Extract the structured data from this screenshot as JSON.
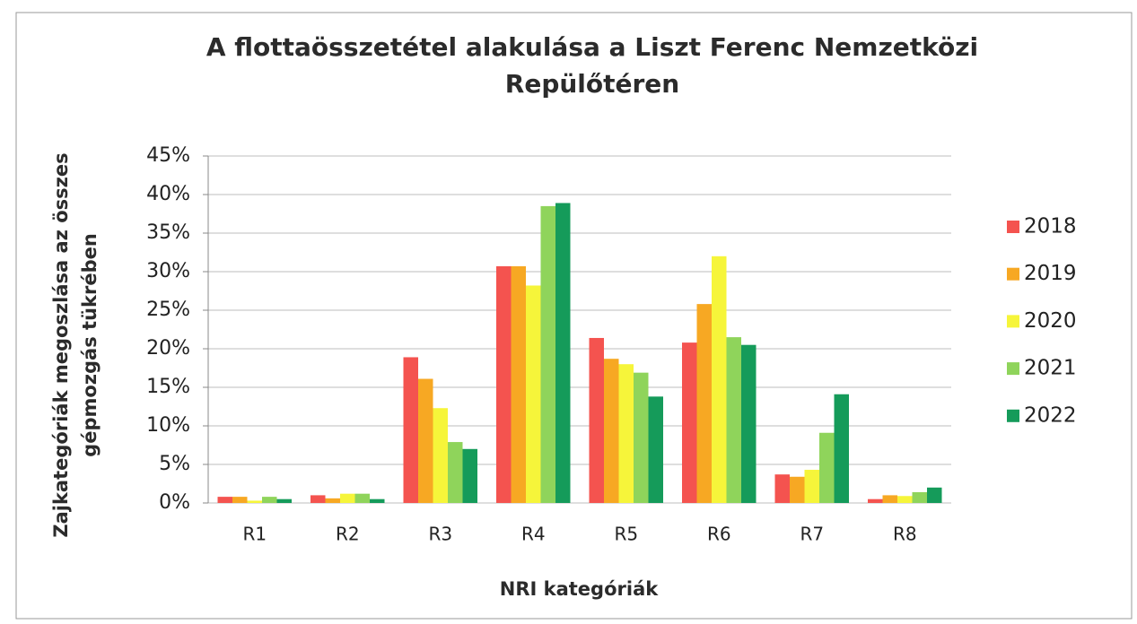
{
  "chart_data": {
    "type": "bar",
    "title": "A flottaösszetétel alakulása a Liszt Ferenc Nemzetközi Repülőtéren",
    "x_label": "NRI kategóriák",
    "y_label": "Zajkategóriák megoszlása az összes gépmozgás tükrében",
    "categories": [
      "R1",
      "R2",
      "R3",
      "R4",
      "R5",
      "R6",
      "R7",
      "R8"
    ],
    "series": [
      {
        "name": "2018",
        "color": "#f4534f",
        "values": [
          0.8,
          1.0,
          18.9,
          30.7,
          21.4,
          20.8,
          3.7,
          0.5
        ]
      },
      {
        "name": "2019",
        "color": "#f7a823",
        "values": [
          0.8,
          0.6,
          16.1,
          30.7,
          18.7,
          25.8,
          3.4,
          1.0
        ]
      },
      {
        "name": "2020",
        "color": "#f6f53a",
        "values": [
          0.3,
          1.2,
          12.3,
          28.2,
          18.0,
          32.0,
          4.3,
          0.9
        ]
      },
      {
        "name": "2021",
        "color": "#8fd45b",
        "values": [
          0.8,
          1.2,
          7.9,
          38.5,
          16.9,
          21.5,
          9.1,
          1.4
        ]
      },
      {
        "name": "2022",
        "color": "#159b5a",
        "values": [
          0.5,
          0.5,
          7.0,
          38.9,
          13.8,
          20.5,
          14.1,
          2.0
        ]
      }
    ],
    "ylim": [
      0,
      45
    ],
    "yticks": [
      {
        "value": 0,
        "label": "0%"
      },
      {
        "value": 5,
        "label": "5%"
      },
      {
        "value": 10,
        "label": "10%"
      },
      {
        "value": 15,
        "label": "15%"
      },
      {
        "value": 20,
        "label": "20%"
      },
      {
        "value": 25,
        "label": "25%"
      },
      {
        "value": 30,
        "label": "30%"
      },
      {
        "value": 35,
        "label": "35%"
      },
      {
        "value": 40,
        "label": "40%"
      },
      {
        "value": 45,
        "label": "45%"
      }
    ],
    "grid": true,
    "legend": "right"
  }
}
